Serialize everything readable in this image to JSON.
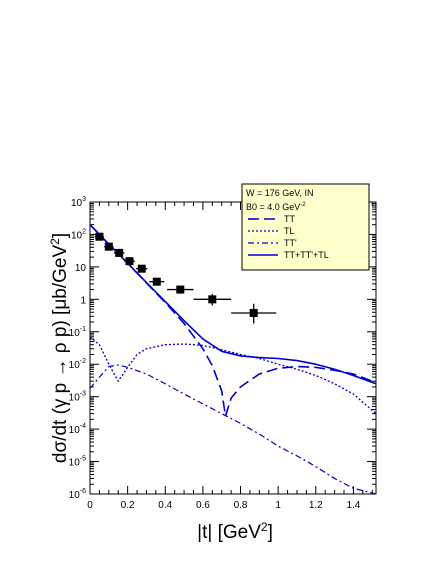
{
  "chart_data": {
    "type": "line",
    "xlabel": "|t| [GeV",
    "xlabel_sup": "2",
    "xlabel_end": "]",
    "ylabel": "dσ/dt (γ p → ρ p) [μb/GeV",
    "ylabel_sup": "2",
    "ylabel_end": "]",
    "xlim": [
      0,
      1.52
    ],
    "ylim_log10": [
      -6,
      3
    ],
    "y_scale": "log",
    "x_ticks": [
      "0",
      "0.2",
      "0.4",
      "0.6",
      "0.8",
      "1",
      "1.2",
      "1.4"
    ],
    "y_ticks": [
      {
        "base": "10",
        "exp": "-6"
      },
      {
        "base": "10",
        "exp": "-5"
      },
      {
        "base": "10",
        "exp": "-4"
      },
      {
        "base": "10",
        "exp": "-3"
      },
      {
        "base": "10",
        "exp": "-2"
      },
      {
        "base": "10",
        "exp": "-1"
      },
      {
        "base": "1",
        "exp": ""
      },
      {
        "base": "10",
        "exp": ""
      },
      {
        "base": "10",
        "exp": "2"
      },
      {
        "base": "10",
        "exp": "3"
      }
    ],
    "legend": {
      "placement": "top-right",
      "header": "W = 176 GeV, IN",
      "b0_text": "B0 = 4.0 GeV",
      "b0_sup": "-2",
      "background": "#ffffcc"
    },
    "color": "#0000cc",
    "data_points": {
      "name": "data",
      "x": [
        0.05,
        0.1,
        0.155,
        0.21,
        0.275,
        0.355,
        0.48,
        0.65,
        0.87
      ],
      "y": [
        85,
        42,
        27,
        15,
        8.8,
        3.5,
        2.0,
        1.0,
        0.38
      ],
      "xerr": [
        0.025,
        0.025,
        0.028,
        0.028,
        0.03,
        0.04,
        0.07,
        0.1,
        0.12
      ],
      "yerr_lo": [
        15,
        8,
        5,
        3,
        1.8,
        0.8,
        0.5,
        0.35,
        0.2
      ],
      "yerr_hi": [
        15,
        8,
        5,
        3,
        1.8,
        0.8,
        0.5,
        0.45,
        0.35
      ]
    },
    "series": [
      {
        "name": "TT",
        "style": "dashed",
        "x": [
          0,
          0.1,
          0.2,
          0.3,
          0.4,
          0.5,
          0.6,
          0.65,
          0.7,
          0.72,
          0.75,
          0.8,
          0.9,
          1.0,
          1.1,
          1.2,
          1.3,
          1.4,
          1.52
        ],
        "y": [
          200,
          50,
          13,
          3.2,
          0.8,
          0.18,
          0.03,
          0.009,
          0.0015,
          0.00025,
          0.0009,
          0.002,
          0.005,
          0.0075,
          0.0085,
          0.008,
          0.0065,
          0.005,
          0.0027
        ]
      },
      {
        "name": "TL",
        "style": "dotted",
        "x": [
          0,
          0.05,
          0.1,
          0.15,
          0.2,
          0.25,
          0.3,
          0.4,
          0.5,
          0.6,
          0.7,
          0.8,
          0.9,
          1.0,
          1.1,
          1.2,
          1.3,
          1.4,
          1.52
        ],
        "y": [
          0.07,
          0.04,
          0.01,
          0.003,
          0.008,
          0.02,
          0.03,
          0.04,
          0.042,
          0.038,
          0.028,
          0.02,
          0.015,
          0.01,
          0.007,
          0.0045,
          0.0025,
          0.0012,
          0.0003
        ]
      },
      {
        "name": "TT'",
        "style": "dash-dot",
        "x": [
          0,
          0.05,
          0.1,
          0.15,
          0.2,
          0.3,
          0.4,
          0.5,
          0.6,
          0.7,
          0.8,
          0.9,
          1.0,
          1.1,
          1.2,
          1.3,
          1.4,
          1.52
        ],
        "y": [
          0.0018,
          0.004,
          0.0085,
          0.0095,
          0.008,
          0.005,
          0.0025,
          0.0012,
          0.0006,
          0.0003,
          0.00015,
          7e-05,
          3e-05,
          1.5e-05,
          7e-06,
          3e-06,
          1.5e-06,
          1e-06
        ]
      },
      {
        "name": "TT+TT'+TL",
        "style": "solid",
        "x": [
          0,
          0.1,
          0.2,
          0.3,
          0.4,
          0.5,
          0.6,
          0.7,
          0.8,
          0.9,
          1.0,
          1.1,
          1.2,
          1.3,
          1.4,
          1.52
        ],
        "y": [
          200,
          50,
          13,
          3.3,
          0.85,
          0.22,
          0.06,
          0.025,
          0.018,
          0.016,
          0.015,
          0.013,
          0.01,
          0.007,
          0.0045,
          0.0025
        ]
      }
    ]
  }
}
